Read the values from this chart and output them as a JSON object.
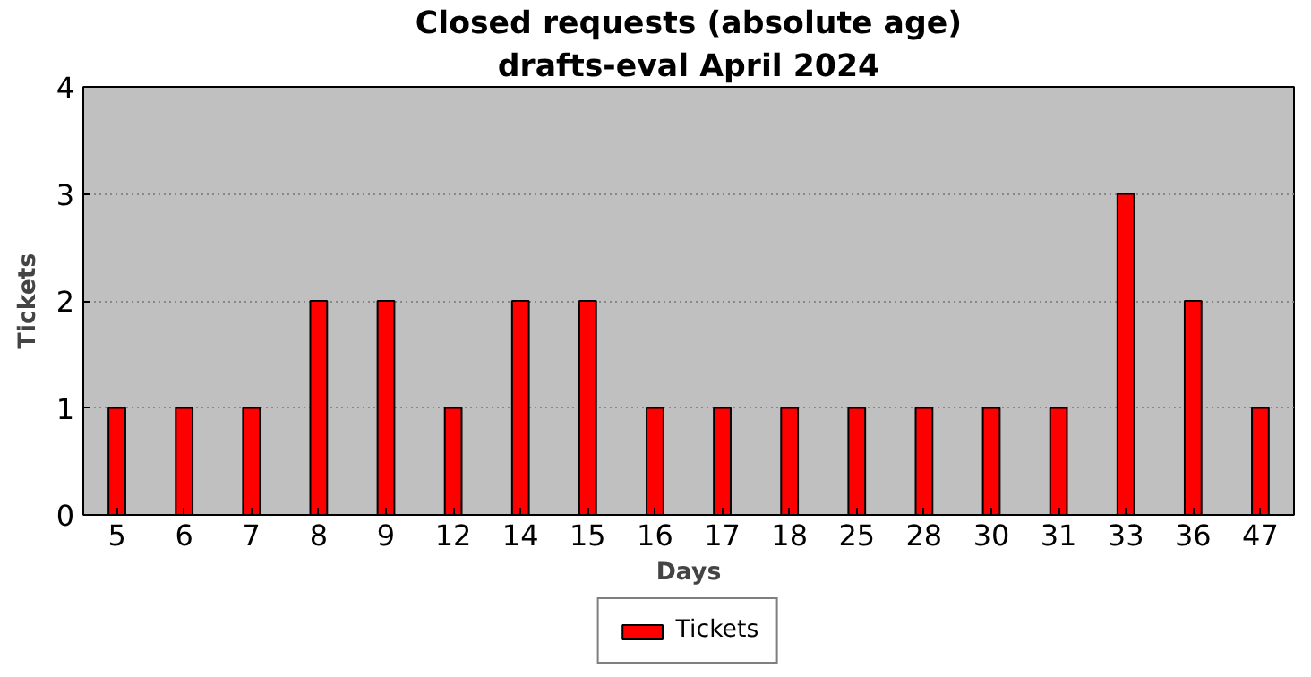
{
  "chart_data": {
    "type": "bar",
    "title": "Closed requests (absolute age)",
    "subtitle": "drafts-eval April 2024",
    "xlabel": "Days",
    "ylabel": "Tickets",
    "categories": [
      "5",
      "6",
      "7",
      "8",
      "9",
      "12",
      "14",
      "15",
      "16",
      "17",
      "18",
      "25",
      "28",
      "30",
      "31",
      "33",
      "36",
      "47"
    ],
    "series": [
      {
        "name": "Tickets",
        "color": "#ff0000",
        "values": [
          1,
          1,
          1,
          2,
          2,
          1,
          2,
          2,
          1,
          1,
          1,
          1,
          1,
          1,
          1,
          3,
          2,
          1
        ]
      }
    ],
    "ylim": [
      0,
      4
    ],
    "yticks": [
      0,
      1,
      2,
      3,
      4
    ],
    "grid": "y",
    "legend": "bottom"
  }
}
